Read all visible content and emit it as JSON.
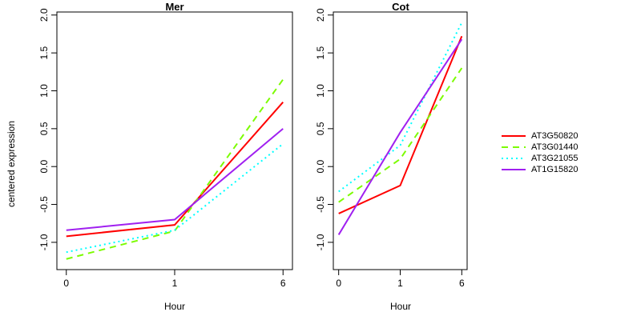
{
  "figure": {
    "background": "#FFFFFF",
    "foreground": "#000000"
  },
  "legend": {
    "position": "right-middle",
    "entries": [
      {
        "label": "AT3G50820",
        "color": "#FF0000",
        "style": "solid"
      },
      {
        "label": "AT3G01440",
        "color": "#7CFC00",
        "style": "dashed"
      },
      {
        "label": "AT3G21055",
        "color": "#00FFFF",
        "style": "dotted"
      },
      {
        "label": "AT1G15820",
        "color": "#A020F0",
        "style": "solid"
      }
    ]
  },
  "chart_data": [
    {
      "type": "line",
      "title": "Mer",
      "xlabel": "Hour",
      "ylabel": "centered expression",
      "categories": [
        "0",
        "1",
        "6"
      ],
      "x_spacing": "equal",
      "series": [
        {
          "name": "AT3G50820",
          "color": "#FF0000",
          "style": "solid",
          "values": [
            -0.92,
            -0.77,
            0.85
          ]
        },
        {
          "name": "AT3G01440",
          "color": "#7CFC00",
          "style": "dashed",
          "values": [
            -1.22,
            -0.85,
            1.15
          ]
        },
        {
          "name": "AT3G21055",
          "color": "#00FFFF",
          "style": "dotted",
          "values": [
            -1.13,
            -0.84,
            0.3
          ]
        },
        {
          "name": "AT1G15820",
          "color": "#A020F0",
          "style": "solid",
          "values": [
            -0.84,
            -0.7,
            0.5
          ]
        }
      ],
      "yticks": [
        -1.0,
        -0.5,
        0.0,
        0.5,
        1.0,
        1.5,
        2.0
      ],
      "ylim": [
        -1.36,
        2.04
      ],
      "grid": false,
      "show_legend": false
    },
    {
      "type": "line",
      "title": "Cot",
      "xlabel": "Hour",
      "ylabel": "",
      "categories": [
        "0",
        "1",
        "6"
      ],
      "x_spacing": "equal",
      "series": [
        {
          "name": "AT3G50820",
          "color": "#FF0000",
          "style": "solid",
          "values": [
            -0.62,
            -0.25,
            1.72
          ]
        },
        {
          "name": "AT3G01440",
          "color": "#7CFC00",
          "style": "dashed",
          "values": [
            -0.47,
            0.1,
            1.3
          ]
        },
        {
          "name": "AT3G21055",
          "color": "#00FFFF",
          "style": "dotted",
          "values": [
            -0.33,
            0.28,
            1.9
          ]
        },
        {
          "name": "AT1G15820",
          "color": "#A020F0",
          "style": "solid",
          "values": [
            -0.9,
            0.45,
            1.68
          ]
        }
      ],
      "yticks": [
        -1.0,
        -0.5,
        0.0,
        0.5,
        1.0,
        1.5,
        2.0
      ],
      "ylim": [
        -1.36,
        2.04
      ],
      "grid": false,
      "show_legend": true
    }
  ]
}
